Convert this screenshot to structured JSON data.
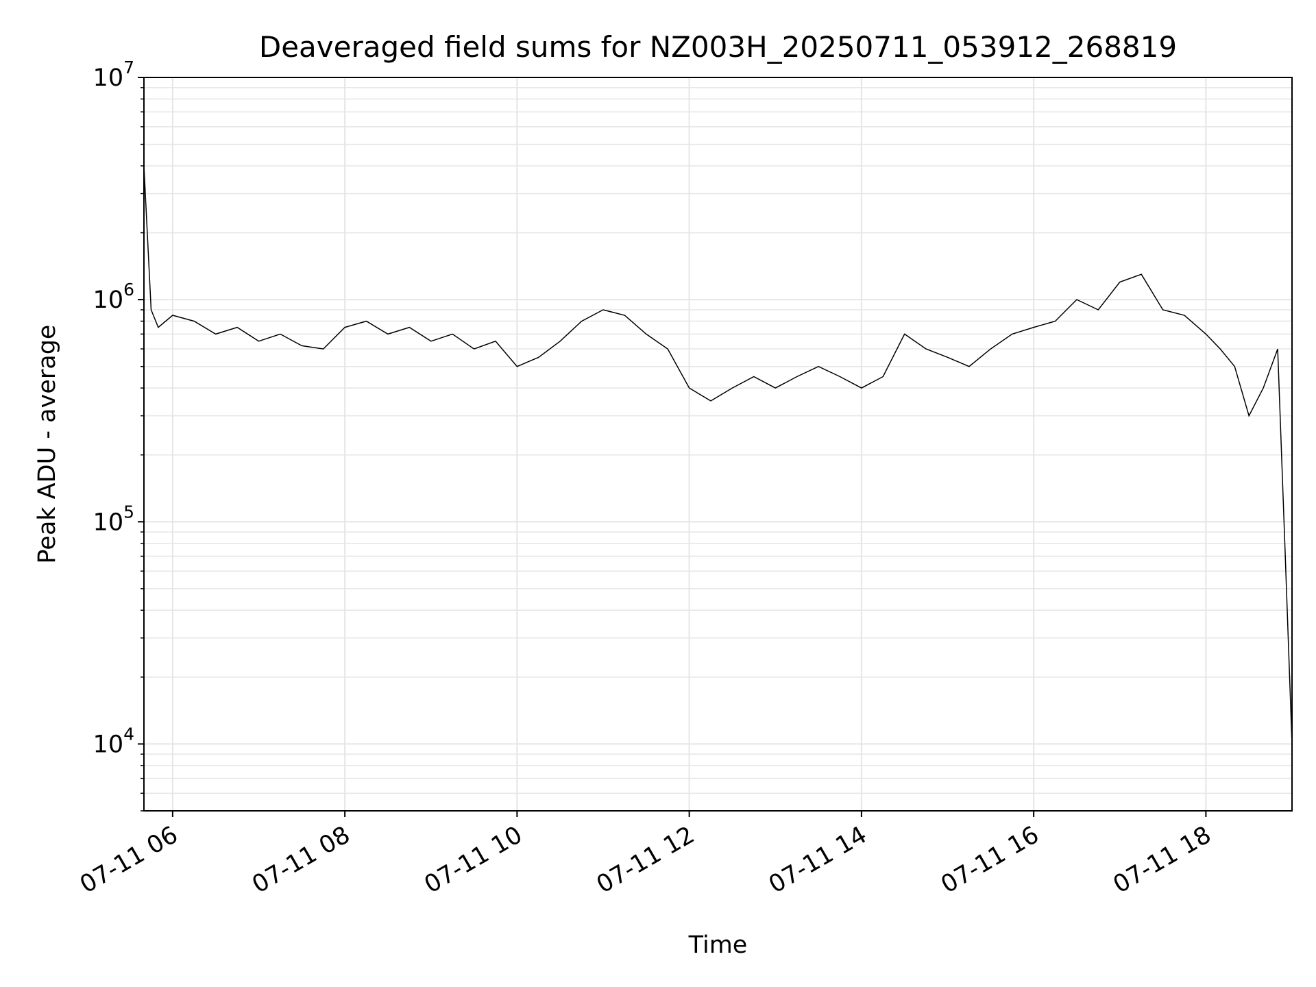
{
  "chart_data": {
    "type": "line",
    "title": "Deaveraged field sums for NZ003H_20250711_053912_268819",
    "xlabel": "Time",
    "ylabel": "Peak ADU - average",
    "y_scale": "log",
    "ylim": [
      5000,
      10000000
    ],
    "xlim": [
      "2025-07-11 05:40",
      "2025-07-11 19:00"
    ],
    "x_ticks": [
      {
        "value": "2025-07-11 06:00",
        "label": "07-11 06"
      },
      {
        "value": "2025-07-11 08:00",
        "label": "07-11 08"
      },
      {
        "value": "2025-07-11 10:00",
        "label": "07-11 10"
      },
      {
        "value": "2025-07-11 12:00",
        "label": "07-11 12"
      },
      {
        "value": "2025-07-11 14:00",
        "label": "07-11 14"
      },
      {
        "value": "2025-07-11 16:00",
        "label": "07-11 16"
      },
      {
        "value": "2025-07-11 18:00",
        "label": "07-11 18"
      }
    ],
    "y_ticks": [
      {
        "value": 10000,
        "base": "10",
        "exp": "4"
      },
      {
        "value": 100000,
        "base": "10",
        "exp": "5"
      },
      {
        "value": 1000000,
        "base": "10",
        "exp": "6"
      },
      {
        "value": 10000000,
        "base": "10",
        "exp": "7"
      }
    ],
    "grid": true,
    "line_color": "#000000",
    "grid_color": "#e5e5e5",
    "series": [
      {
        "x": [
          "2025-07-11 05:40",
          "2025-07-11 05:45",
          "2025-07-11 05:50",
          "2025-07-11 06:00",
          "2025-07-11 06:15",
          "2025-07-11 06:30",
          "2025-07-11 06:45",
          "2025-07-11 07:00",
          "2025-07-11 07:15",
          "2025-07-11 07:30",
          "2025-07-11 07:45",
          "2025-07-11 08:00",
          "2025-07-11 08:15",
          "2025-07-11 08:30",
          "2025-07-11 08:45",
          "2025-07-11 09:00",
          "2025-07-11 09:15",
          "2025-07-11 09:30",
          "2025-07-11 09:45",
          "2025-07-11 10:00",
          "2025-07-11 10:15",
          "2025-07-11 10:30",
          "2025-07-11 10:45",
          "2025-07-11 11:00",
          "2025-07-11 11:15",
          "2025-07-11 11:30",
          "2025-07-11 11:45",
          "2025-07-11 12:00",
          "2025-07-11 12:15",
          "2025-07-11 12:30",
          "2025-07-11 12:45",
          "2025-07-11 13:00",
          "2025-07-11 13:15",
          "2025-07-11 13:30",
          "2025-07-11 13:45",
          "2025-07-11 14:00",
          "2025-07-11 14:15",
          "2025-07-11 14:30",
          "2025-07-11 14:45",
          "2025-07-11 15:00",
          "2025-07-11 15:15",
          "2025-07-11 15:30",
          "2025-07-11 15:45",
          "2025-07-11 16:00",
          "2025-07-11 16:15",
          "2025-07-11 16:30",
          "2025-07-11 16:45",
          "2025-07-11 17:00",
          "2025-07-11 17:15",
          "2025-07-11 17:30",
          "2025-07-11 17:45",
          "2025-07-11 18:00",
          "2025-07-11 18:10",
          "2025-07-11 18:20",
          "2025-07-11 18:30",
          "2025-07-11 18:40",
          "2025-07-11 18:50",
          "2025-07-11 18:55",
          "2025-07-11 19:00"
        ],
        "y": [
          4000000,
          900000,
          750000,
          850000,
          800000,
          700000,
          750000,
          650000,
          700000,
          620000,
          600000,
          750000,
          800000,
          700000,
          750000,
          650000,
          700000,
          600000,
          650000,
          500000,
          550000,
          650000,
          800000,
          900000,
          850000,
          700000,
          600000,
          400000,
          350000,
          400000,
          450000,
          400000,
          450000,
          500000,
          450000,
          400000,
          450000,
          700000,
          600000,
          550000,
          500000,
          600000,
          700000,
          750000,
          800000,
          1000000,
          900000,
          1200000,
          1300000,
          900000,
          850000,
          700000,
          600000,
          500000,
          300000,
          400000,
          600000,
          80000,
          10000
        ]
      }
    ]
  }
}
